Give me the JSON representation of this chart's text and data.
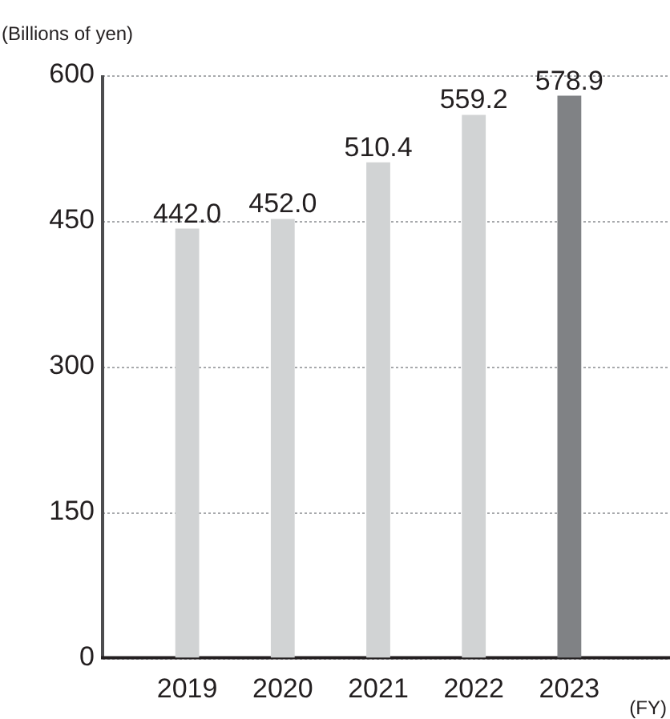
{
  "chart_data": {
    "type": "bar",
    "ylabel": "(Billions of yen)",
    "xlabel": "(FY)",
    "categories": [
      "2019",
      "2020",
      "2021",
      "2022",
      "2023"
    ],
    "values": [
      442.0,
      452.0,
      510.4,
      559.2,
      578.9
    ],
    "value_labels": [
      "442.0",
      "452.0",
      "510.4",
      "559.2",
      "578.9"
    ],
    "colors": [
      "#d1d3d4",
      "#d1d3d4",
      "#d1d3d4",
      "#d1d3d4",
      "#808285"
    ],
    "ylim": [
      0,
      600
    ],
    "yticks": [
      0,
      150,
      300,
      450,
      600
    ],
    "grid": "y"
  }
}
